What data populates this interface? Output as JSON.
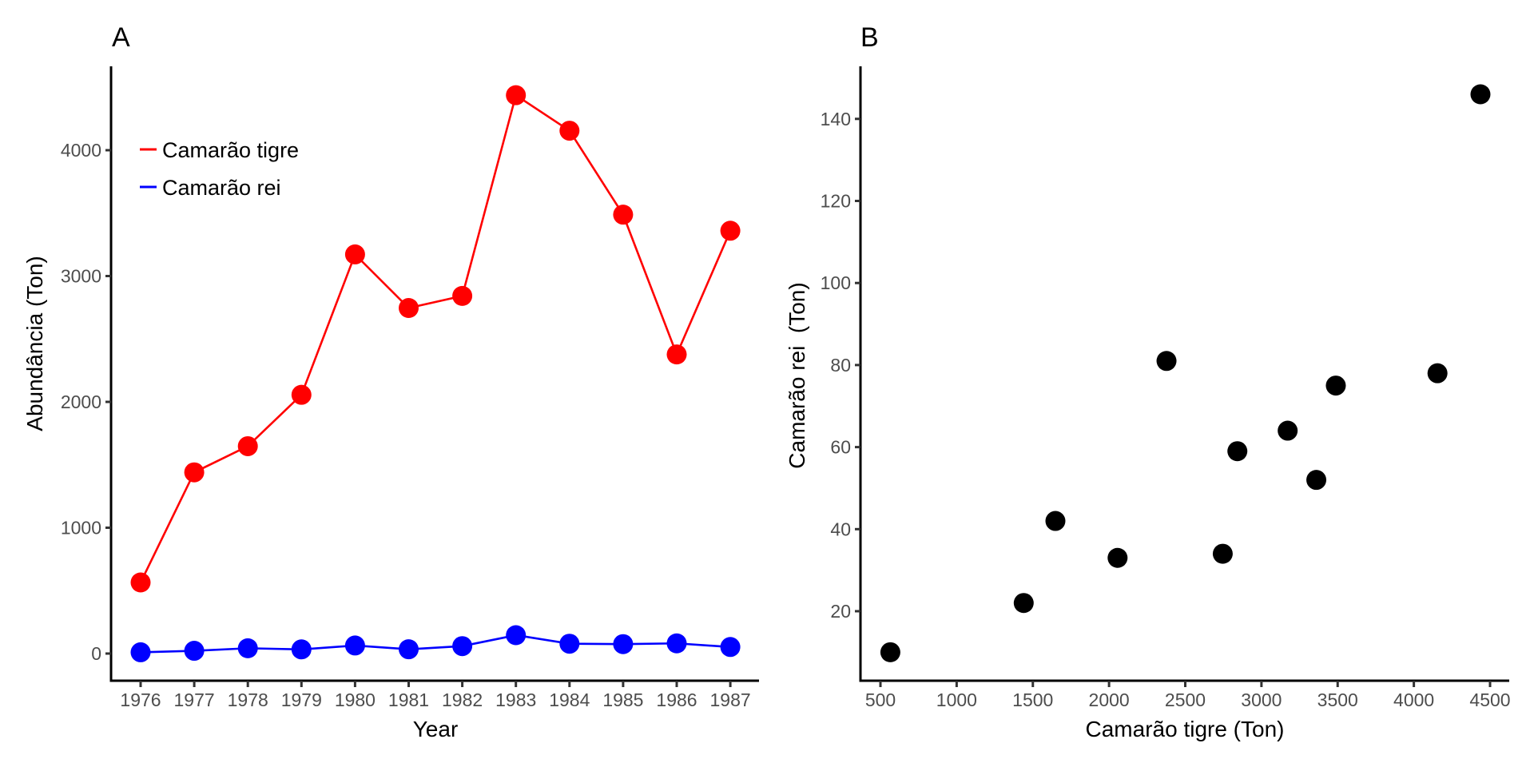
{
  "chart_data": [
    {
      "panel": "A",
      "type": "line",
      "title": "",
      "xlabel": "Year",
      "ylabel": "Abundância (Ton)",
      "categories": [
        "1976",
        "1977",
        "1978",
        "1979",
        "1980",
        "1981",
        "1982",
        "1983",
        "1984",
        "1985",
        "1986",
        "1987"
      ],
      "xlim": [
        1975.45,
        1987.5
      ],
      "ylim": [
        -230,
        4650
      ],
      "yticks": [
        0,
        1000,
        2000,
        3000,
        4000
      ],
      "ytick_labels": [
        "0",
        "1000",
        "2000",
        "3000",
        "4000"
      ],
      "grid": false,
      "legend": "top-left",
      "series": [
        {
          "name": "Camarão tigre",
          "color": "#ff0000",
          "values": [
            565,
            1440,
            1648,
            2056,
            3172,
            2746,
            2842,
            4437,
            4155,
            3488,
            2377,
            3360
          ]
        },
        {
          "name": "Camarão rei",
          "color": "#0000ff",
          "values": [
            10,
            22,
            42,
            33,
            64,
            34,
            59,
            146,
            78,
            75,
            81,
            52
          ]
        }
      ]
    },
    {
      "panel": "B",
      "type": "scatter",
      "title": "",
      "xlabel": "Camarão tigre (Ton)",
      "ylabel": "Camarão rei  (Ton)",
      "xlim": [
        380,
        4620
      ],
      "ylim": [
        3,
        153
      ],
      "xticks": [
        500,
        1000,
        1500,
        2000,
        2500,
        3000,
        3500,
        4000,
        4500
      ],
      "xtick_labels": [
        "500",
        "1000",
        "1500",
        "2000",
        "2500",
        "3000",
        "3500",
        "4000",
        "4500"
      ],
      "yticks": [
        20,
        40,
        60,
        80,
        100,
        120,
        140
      ],
      "ytick_labels": [
        "20",
        "40",
        "60",
        "80",
        "100",
        "120",
        "140"
      ],
      "grid": false,
      "color": "#000000",
      "x": [
        565,
        1440,
        1648,
        2056,
        3172,
        2746,
        2842,
        4437,
        4155,
        3488,
        2377,
        3360
      ],
      "y": [
        10,
        22,
        42,
        33,
        64,
        34,
        59,
        146,
        78,
        75,
        81,
        52
      ]
    }
  ]
}
